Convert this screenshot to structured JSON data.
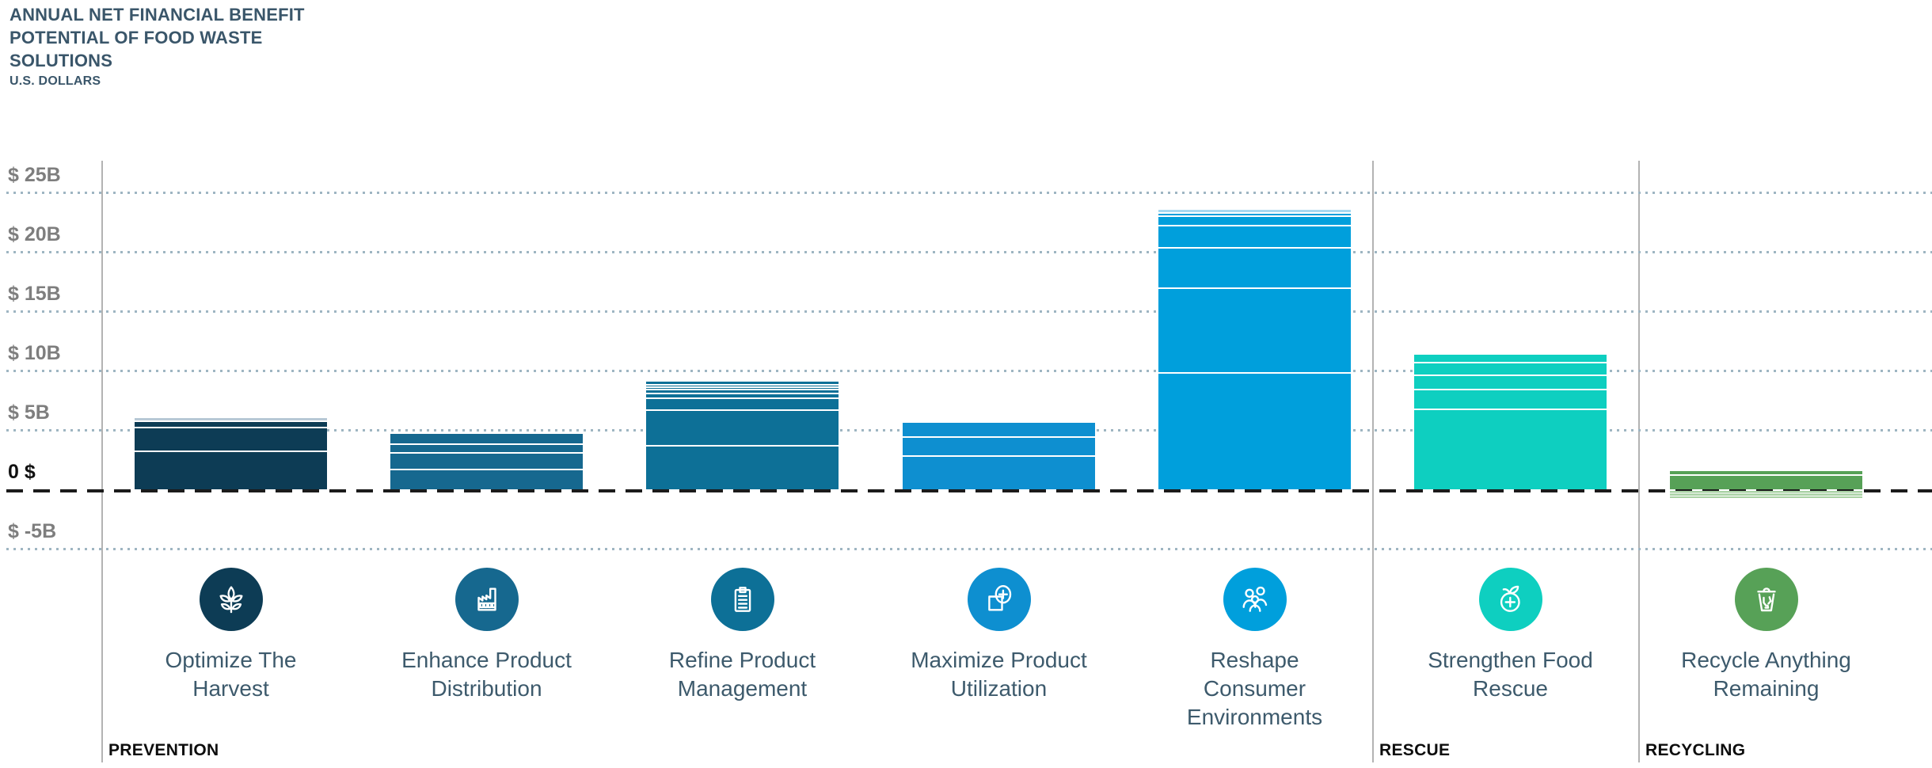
{
  "header": {
    "title_lines": [
      "ANNUAL NET FINANCIAL BENEFIT",
      "POTENTIAL OF FOOD WASTE",
      "SOLUTIONS"
    ],
    "unit_label": "U.S. DOLLARS"
  },
  "colors": {
    "title_text": "#3a566a",
    "axis_text": "#7e7e7e",
    "zero_text": "#111111",
    "category_text": "#3d5a6c",
    "section_text": "#0d0d0d",
    "gridline_dotted": "#9eb5c2",
    "zero_line_dashed": "#1b1b1b",
    "section_divider": "#b3b3b3"
  },
  "chart_data": {
    "type": "bar",
    "stacked": true,
    "title": "Annual Net Financial Benefit Potential of Food Waste Solutions",
    "unit": "U.S. Dollars (billions)",
    "xlabel": "",
    "ylabel": "U.S. Dollars",
    "ylim": [
      -5,
      25
    ],
    "grid": "dotted horizontal gridlines every $5B",
    "zero_line": "dashed black",
    "legend": "none",
    "yticks": [
      {
        "label": "$ 25B",
        "value": 25
      },
      {
        "label": "$ 20B",
        "value": 20
      },
      {
        "label": "$ 15B",
        "value": 15
      },
      {
        "label": "$ 10B",
        "value": 10
      },
      {
        "label": "$ 5B",
        "value": 5
      },
      {
        "label": "0 $",
        "value": 0,
        "emphasis": true
      },
      {
        "label": "$ -5B",
        "value": -5
      }
    ],
    "categories": [
      "Optimize The Harvest",
      "Enhance Product Distribution",
      "Refine Product Management",
      "Maximize Product Utilization",
      "Reshape Consumer Environments",
      "Strengthen Food Rescue",
      "Recycle Anything Remaining"
    ],
    "bars": [
      {
        "label_lines": [
          "Optimize The",
          "Harvest"
        ],
        "section": "PREVENTION",
        "icon": "wheat-icon",
        "color": "#0d3c55",
        "segments_top_to_bottom": [
          {
            "value": 0.2,
            "color": "#b8c9d6"
          },
          {
            "value": 0.5
          },
          {
            "value": 2.0
          },
          {
            "value": 3.3
          }
        ],
        "total_net_billions": 6.0
      },
      {
        "label_lines": [
          "Enhance Product",
          "Distribution"
        ],
        "section": "PREVENTION",
        "icon": "factory-icon",
        "color": "#16688f",
        "segments_top_to_bottom": [
          {
            "value": 0.8
          },
          {
            "value": 0.75
          },
          {
            "value": 1.4
          },
          {
            "value": 1.7
          }
        ],
        "total_net_billions": 4.65
      },
      {
        "label_lines": [
          "Refine Product",
          "Management"
        ],
        "section": "PREVENTION",
        "icon": "clipboard-icon",
        "color": "#0d7097",
        "segments_top_to_bottom": [
          {
            "value": 0.2
          },
          {
            "value": 0.2
          },
          {
            "value": 0.2
          },
          {
            "value": 0.3
          },
          {
            "value": 0.45
          },
          {
            "value": 1.0
          },
          {
            "value": 3.0
          },
          {
            "value": 3.7
          }
        ],
        "total_net_billions": 9.05
      },
      {
        "label_lines": [
          "Maximize Product",
          "Utilization"
        ],
        "section": "PREVENTION",
        "icon": "maximize-icon",
        "color": "#0e8fd0",
        "segments_top_to_bottom": [
          {
            "value": 1.15
          },
          {
            "value": 1.55
          },
          {
            "value": 2.9
          }
        ],
        "total_net_billions": 5.6
      },
      {
        "label_lines": [
          "Reshape",
          "Consumer",
          "Environments"
        ],
        "section": "PREVENTION",
        "icon": "people-icon",
        "color": "#009fdc",
        "segments_top_to_bottom": [
          {
            "value": 0.2,
            "color": "#a5d8f0"
          },
          {
            "value": 0.25
          },
          {
            "value": 0.85
          },
          {
            "value": 1.85
          },
          {
            "value": 3.4
          },
          {
            "value": 7.1
          },
          {
            "value": 9.9
          }
        ],
        "total_net_billions": 23.55
      },
      {
        "label_lines": [
          "Strengthen Food",
          "Rescue"
        ],
        "section": "RESCUE",
        "icon": "fruit-plus-icon",
        "color": "#0ecfc0",
        "segments_top_to_bottom": [
          {
            "value": 0.6
          },
          {
            "value": 1.1
          },
          {
            "value": 1.2
          },
          {
            "value": 1.65
          },
          {
            "value": 6.8
          }
        ],
        "total_net_billions": 11.35
      },
      {
        "label_lines": [
          "Recycle Anything",
          "Remaining"
        ],
        "section": "RECYCLING",
        "icon": "recycle-bin-icon",
        "color": "#57a157",
        "segments_top_to_bottom": [
          {
            "value": 0.3
          },
          {
            "value": 1.25
          }
        ],
        "negative_segments": [
          {
            "value": -0.6,
            "color": "#a9d2a4"
          }
        ],
        "total_net_billions": 0.95
      }
    ],
    "sections": [
      {
        "label": "PREVENTION"
      },
      {
        "label": "RESCUE"
      },
      {
        "label": "RECYCLING"
      }
    ]
  }
}
